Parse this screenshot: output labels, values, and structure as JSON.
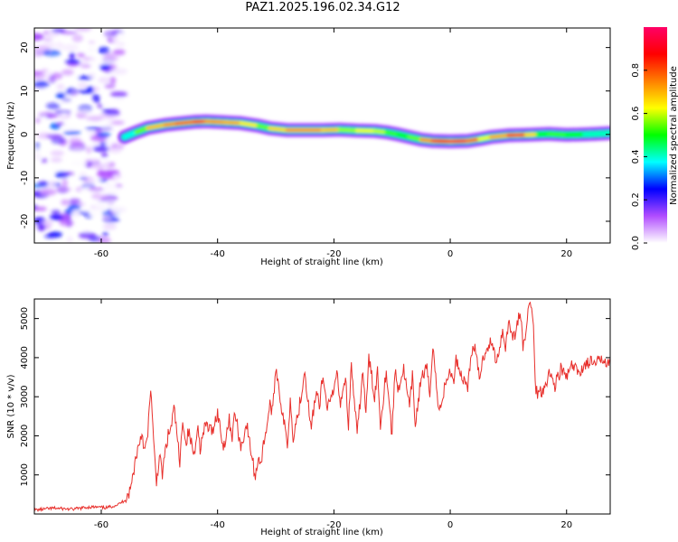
{
  "title": "PAZ1.2025.196.02.34.G12",
  "colors": {
    "snr_line": "#e8302c",
    "frame": "#000000"
  },
  "chart_data": [
    {
      "type": "heatmap",
      "xlabel": "Height of straight line (km)",
      "ylabel": "Frequency (Hz)",
      "xlim": [
        -71.5,
        27.5
      ],
      "ylim": [
        -25,
        24.5
      ],
      "xticks": [
        -60,
        -40,
        -20,
        0,
        20
      ],
      "yticks": [
        -20,
        -10,
        0,
        10,
        20
      ],
      "grid": false,
      "colorbar": {
        "label": "Normalized spectral amplitude",
        "range": [
          0,
          1
        ],
        "ticks": [
          "0.0",
          "0.2",
          "0.4",
          "0.6",
          "0.8"
        ],
        "tick_values": [
          0.0,
          0.2,
          0.4,
          0.6,
          0.8
        ],
        "colormap": [
          "#ffffff",
          "#b14dff",
          "#0000ff",
          "#00ffff",
          "#00ff00",
          "#ffff00",
          "#ff7f00",
          "#ff0000",
          "#ff0066"
        ]
      },
      "ridge": {
        "x": [
          -56,
          -54,
          -52,
          -49,
          -47,
          -44,
          -42,
          -39,
          -36,
          -33,
          -31,
          -28,
          -25,
          -22,
          -19,
          -16,
          -13,
          -11,
          -9,
          -7,
          -5,
          -3,
          0,
          3,
          5,
          7,
          10,
          13,
          15,
          17,
          20,
          23,
          25,
          27.5
        ],
        "frequency": [
          -0.6,
          0.5,
          1.5,
          2.2,
          2.5,
          2.9,
          3.0,
          2.8,
          2.6,
          2.0,
          1.4,
          1.0,
          1.0,
          1.0,
          1.1,
          0.9,
          0.8,
          0.5,
          0.0,
          -0.6,
          -1.2,
          -1.5,
          -1.6,
          -1.5,
          -1.1,
          -0.6,
          -0.2,
          -0.1,
          0.0,
          0.1,
          -0.1,
          0.0,
          0.1,
          0.3
        ],
        "amplitude": [
          0.3,
          0.5,
          0.65,
          0.8,
          0.75,
          0.9,
          0.85,
          0.7,
          0.8,
          0.55,
          0.6,
          0.8,
          0.75,
          0.8,
          0.65,
          0.55,
          0.75,
          0.5,
          0.6,
          0.45,
          0.7,
          0.85,
          1.0,
          0.95,
          0.7,
          0.6,
          0.9,
          0.85,
          0.55,
          0.5,
          0.6,
          0.45,
          0.4,
          0.45
        ]
      },
      "noise_region": {
        "x_range": [
          -71.5,
          -56
        ],
        "amplitude_range": [
          0.0,
          0.3
        ]
      }
    },
    {
      "type": "line",
      "xlabel": "Height of straight line (km)",
      "ylabel": "SNR (10 * v/v)",
      "xlim": [
        -71.5,
        27.5
      ],
      "ylim": [
        0,
        5500
      ],
      "xticks": [
        -60,
        -40,
        -20,
        0,
        20
      ],
      "yticks": [
        1000,
        2000,
        3000,
        4000,
        5000
      ],
      "grid": false,
      "series": [
        {
          "x": [
            -71.5,
            -68,
            -65,
            -62,
            -59,
            -57,
            -56,
            -55,
            -54,
            -53.5,
            -53,
            -52.5,
            -52,
            -51.5,
            -51,
            -50.5,
            -50,
            -49.5,
            -49,
            -48.5,
            -48,
            -47.5,
            -47,
            -46.5,
            -46,
            -45.5,
            -45,
            -44,
            -43.5,
            -43,
            -42,
            -41,
            -40,
            -39,
            -38,
            -37.5,
            -37,
            -36,
            -35,
            -34.5,
            -34,
            -33.5,
            -33,
            -32.5,
            -32,
            -31.5,
            -31,
            -30.5,
            -30,
            -29.5,
            -29,
            -28,
            -27.5,
            -27,
            -26,
            -25,
            -24,
            -23,
            -22.5,
            -22,
            -21,
            -20,
            -19.5,
            -19,
            -18,
            -17.5,
            -17,
            -16,
            -15,
            -14.5,
            -14,
            -13,
            -12.5,
            -12,
            -11,
            -10,
            -9.5,
            -9,
            -8,
            -7,
            -6.5,
            -6,
            -5,
            -4,
            -3.5,
            -3,
            -2,
            -1,
            0,
            0.5,
            1,
            2,
            3,
            4,
            5,
            6,
            7,
            8,
            9,
            9.5,
            10,
            11,
            12,
            12.5,
            13,
            13.5,
            14,
            14.3,
            14.6,
            15,
            16,
            17,
            18,
            19,
            20,
            21,
            22,
            23,
            24,
            25,
            26,
            27.5
          ],
          "values": [
            100,
            150,
            120,
            180,
            160,
            250,
            350,
            600,
            1500,
            1800,
            2100,
            1600,
            2000,
            3300,
            1800,
            800,
            1500,
            1000,
            1600,
            2000,
            2200,
            2700,
            2100,
            1200,
            2500,
            1800,
            2100,
            1500,
            2300,
            1700,
            2300,
            2100,
            2600,
            1700,
            2400,
            2000,
            2600,
            1700,
            2300,
            1800,
            1400,
            900,
            1500,
            1300,
            1900,
            2300,
            2800,
            2600,
            3800,
            3300,
            2700,
            1800,
            2900,
            2000,
            2700,
            3700,
            2200,
            3100,
            2700,
            3500,
            2700,
            3100,
            3700,
            2800,
            3500,
            2300,
            3800,
            2000,
            3700,
            2500,
            4000,
            3000,
            3700,
            2300,
            3700,
            2000,
            3700,
            3200,
            3700,
            2700,
            3500,
            2300,
            3500,
            3700,
            3000,
            4400,
            2600,
            3200,
            3700,
            3300,
            4000,
            3500,
            3300,
            4400,
            3500,
            4200,
            4400,
            3900,
            4700,
            4300,
            4900,
            4500,
            5200,
            4300,
            4600,
            5300,
            5400,
            4800,
            3300,
            3100,
            3200,
            3600,
            3300,
            3700,
            3500,
            3800,
            3600,
            3800,
            3900,
            3800,
            4000,
            3900
          ]
        }
      ]
    }
  ]
}
